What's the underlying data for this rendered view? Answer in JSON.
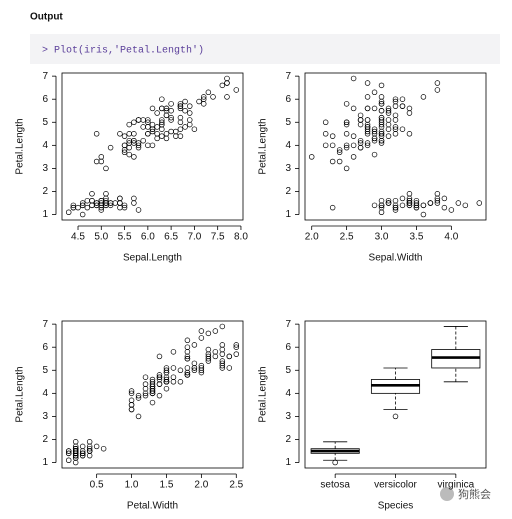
{
  "header": "Output",
  "code": "> Plot(iris,'Petal.Length')",
  "watermark": "狗熊会",
  "chart_data": [
    {
      "type": "scatter",
      "xlabel": "Sepal.Length",
      "ylabel": "Petal.Length",
      "xlim": [
        4.156,
        8.044
      ],
      "ylim": [
        0.764,
        7.136
      ],
      "xticks": [
        4.5,
        {
          "value": 5,
          "label": "5.0"
        },
        5.5,
        {
          "value": 6,
          "label": "6.0"
        },
        6.5,
        {
          "value": 7,
          "label": "7.0"
        },
        7.5,
        {
          "value": 8,
          "label": "8.0"
        }
      ],
      "yticks": [
        1,
        2,
        3,
        4,
        5,
        6,
        7
      ],
      "x": [
        5.1,
        4.9,
        4.7,
        4.6,
        5.0,
        5.4,
        4.6,
        5.0,
        4.4,
        4.9,
        5.4,
        4.8,
        4.8,
        4.3,
        5.8,
        5.7,
        5.4,
        5.1,
        5.7,
        5.1,
        5.4,
        5.1,
        4.6,
        5.1,
        4.8,
        5.0,
        5.0,
        5.2,
        5.2,
        4.7,
        4.8,
        5.4,
        5.2,
        5.5,
        4.9,
        5.0,
        5.5,
        4.9,
        4.4,
        5.1,
        5.0,
        4.5,
        4.4,
        5.0,
        5.1,
        4.8,
        5.1,
        4.6,
        5.3,
        5.0,
        7.0,
        6.4,
        6.9,
        5.5,
        6.5,
        5.7,
        6.3,
        4.9,
        6.6,
        5.2,
        5.0,
        5.9,
        6.0,
        6.1,
        5.6,
        6.7,
        5.6,
        5.8,
        6.2,
        5.6,
        5.9,
        6.1,
        6.3,
        6.1,
        6.4,
        6.6,
        6.8,
        6.7,
        6.0,
        5.7,
        5.5,
        5.5,
        5.8,
        6.0,
        5.4,
        6.0,
        6.7,
        6.3,
        5.6,
        5.5,
        5.5,
        6.1,
        5.8,
        5.0,
        5.6,
        5.7,
        5.7,
        6.2,
        5.1,
        5.7,
        6.3,
        5.8,
        7.1,
        6.3,
        6.5,
        7.6,
        4.9,
        7.3,
        6.7,
        7.2,
        6.5,
        6.4,
        6.8,
        5.7,
        5.8,
        6.4,
        6.5,
        7.7,
        7.7,
        6.0,
        6.9,
        5.6,
        7.7,
        6.3,
        6.7,
        7.2,
        6.2,
        6.1,
        6.4,
        7.2,
        7.4,
        7.9,
        6.4,
        6.3,
        6.1,
        7.7,
        6.3,
        6.4,
        6.0,
        6.9,
        6.7,
        6.9,
        5.8,
        6.8,
        6.7,
        6.7,
        6.3,
        6.5,
        6.2,
        5.9
      ],
      "y": [
        1.4,
        1.4,
        1.3,
        1.5,
        1.4,
        1.7,
        1.4,
        1.5,
        1.4,
        1.5,
        1.5,
        1.6,
        1.4,
        1.1,
        1.2,
        1.5,
        1.3,
        1.4,
        1.7,
        1.5,
        1.7,
        1.5,
        1.0,
        1.7,
        1.9,
        1.6,
        1.6,
        1.5,
        1.4,
        1.6,
        1.6,
        1.5,
        1.5,
        1.4,
        1.5,
        1.2,
        1.3,
        1.4,
        1.3,
        1.5,
        1.3,
        1.3,
        1.3,
        1.6,
        1.9,
        1.4,
        1.6,
        1.4,
        1.5,
        1.4,
        4.7,
        4.5,
        4.9,
        4.0,
        4.6,
        4.5,
        4.7,
        3.3,
        4.6,
        3.9,
        3.5,
        4.2,
        4.0,
        4.7,
        3.6,
        4.4,
        4.5,
        4.1,
        4.5,
        3.9,
        4.8,
        4.0,
        4.9,
        4.7,
        4.3,
        4.4,
        4.8,
        5.0,
        4.5,
        3.5,
        3.8,
        3.7,
        3.9,
        5.1,
        4.5,
        4.5,
        4.7,
        4.4,
        4.1,
        4.0,
        4.4,
        4.6,
        4.0,
        3.3,
        4.2,
        4.2,
        4.2,
        4.3,
        3.0,
        4.1,
        6.0,
        5.1,
        5.9,
        5.6,
        5.8,
        6.6,
        4.5,
        6.3,
        5.8,
        6.1,
        5.1,
        5.3,
        5.5,
        5.0,
        5.1,
        5.3,
        5.5,
        6.7,
        6.9,
        5.0,
        5.7,
        4.9,
        6.7,
        4.9,
        5.7,
        6.0,
        4.8,
        4.9,
        5.6,
        5.8,
        6.1,
        6.4,
        5.6,
        5.1,
        5.6,
        6.1,
        5.6,
        5.5,
        4.8,
        5.4,
        5.6,
        5.1,
        5.1,
        5.9,
        5.7,
        5.2,
        5.0,
        5.2,
        5.4,
        5.1
      ]
    },
    {
      "type": "scatter",
      "xlabel": "Sepal.Width",
      "ylabel": "Petal.Length",
      "xlim": [
        1.904,
        4.496
      ],
      "ylim": [
        0.764,
        7.136
      ],
      "xticks": [
        {
          "value": 2,
          "label": "2.0"
        },
        2.5,
        {
          "value": 3,
          "label": "3.0"
        },
        3.5,
        {
          "value": 4,
          "label": "4.0"
        }
      ],
      "yticks": [
        1,
        2,
        3,
        4,
        5,
        6,
        7
      ],
      "x": [
        3.5,
        3.0,
        3.2,
        3.1,
        3.6,
        3.9,
        3.4,
        3.4,
        2.9,
        3.1,
        3.7,
        3.4,
        3.0,
        3.0,
        4.0,
        4.4,
        3.9,
        3.5,
        3.8,
        3.8,
        3.4,
        3.7,
        3.6,
        3.3,
        3.4,
        3.0,
        3.4,
        3.5,
        3.4,
        3.2,
        3.1,
        3.4,
        4.1,
        4.2,
        3.1,
        3.2,
        3.5,
        3.6,
        3.0,
        3.4,
        3.5,
        2.3,
        3.2,
        3.5,
        3.8,
        3.0,
        3.8,
        3.2,
        3.7,
        3.3,
        3.2,
        3.2,
        3.1,
        2.3,
        2.8,
        2.8,
        3.3,
        2.4,
        2.9,
        2.7,
        2.0,
        3.0,
        2.2,
        2.9,
        2.9,
        3.1,
        3.0,
        2.7,
        2.2,
        2.5,
        3.2,
        2.8,
        2.5,
        2.8,
        2.9,
        3.0,
        2.8,
        3.0,
        2.9,
        2.6,
        2.4,
        2.4,
        2.7,
        2.7,
        3.0,
        3.4,
        3.1,
        2.3,
        3.0,
        2.5,
        2.6,
        3.0,
        2.6,
        2.3,
        2.7,
        3.0,
        2.9,
        2.9,
        2.5,
        2.8,
        3.3,
        2.7,
        3.0,
        2.9,
        3.0,
        3.0,
        2.5,
        2.9,
        2.5,
        3.6,
        3.2,
        2.7,
        3.0,
        2.5,
        2.8,
        3.2,
        3.0,
        3.8,
        2.6,
        2.2,
        3.2,
        2.8,
        2.8,
        2.7,
        3.3,
        3.2,
        2.8,
        3.0,
        2.8,
        3.0,
        2.8,
        3.8,
        2.8,
        2.8,
        2.6,
        3.0,
        3.4,
        3.1,
        3.0,
        3.1,
        3.1,
        3.1,
        2.7,
        3.2,
        3.3,
        3.0,
        2.5,
        3.0,
        3.4,
        3.0
      ],
      "y": [
        1.4,
        1.4,
        1.3,
        1.5,
        1.4,
        1.7,
        1.4,
        1.5,
        1.4,
        1.5,
        1.5,
        1.6,
        1.4,
        1.1,
        1.2,
        1.5,
        1.3,
        1.4,
        1.7,
        1.5,
        1.7,
        1.5,
        1.0,
        1.7,
        1.9,
        1.6,
        1.6,
        1.5,
        1.4,
        1.6,
        1.6,
        1.5,
        1.5,
        1.4,
        1.5,
        1.2,
        1.3,
        1.4,
        1.3,
        1.5,
        1.3,
        1.3,
        1.3,
        1.6,
        1.9,
        1.4,
        1.6,
        1.4,
        1.5,
        1.4,
        4.7,
        4.5,
        4.9,
        4.0,
        4.6,
        4.5,
        4.7,
        3.3,
        4.6,
        3.9,
        3.5,
        4.2,
        4.0,
        4.7,
        3.6,
        4.4,
        4.5,
        4.1,
        4.5,
        3.9,
        4.8,
        4.0,
        4.9,
        4.7,
        4.3,
        4.4,
        4.8,
        5.0,
        4.5,
        3.5,
        3.8,
        3.7,
        3.9,
        5.1,
        4.5,
        4.5,
        4.7,
        4.4,
        4.1,
        4.0,
        4.4,
        4.6,
        4.0,
        3.3,
        4.2,
        4.2,
        4.2,
        4.3,
        3.0,
        4.1,
        6.0,
        5.1,
        5.9,
        5.6,
        5.8,
        6.6,
        4.5,
        6.3,
        5.8,
        6.1,
        5.1,
        5.3,
        5.5,
        5.0,
        5.1,
        5.3,
        5.5,
        6.7,
        6.9,
        5.0,
        5.7,
        4.9,
        6.7,
        4.9,
        5.7,
        6.0,
        4.8,
        4.9,
        5.6,
        5.8,
        6.1,
        6.4,
        5.6,
        5.1,
        5.6,
        6.1,
        5.6,
        5.5,
        4.8,
        5.4,
        5.6,
        5.1,
        5.1,
        5.9,
        5.7,
        5.2,
        5.0,
        5.2,
        5.4,
        5.1
      ]
    },
    {
      "type": "scatter",
      "xlabel": "Petal.Width",
      "ylabel": "Petal.Length",
      "xlim": [
        0.004,
        2.596
      ],
      "ylim": [
        0.764,
        7.136
      ],
      "xticks": [
        0.5,
        {
          "value": 1,
          "label": "1.0"
        },
        1.5,
        {
          "value": 2,
          "label": "2.0"
        },
        2.5
      ],
      "yticks": [
        1,
        2,
        3,
        4,
        5,
        6,
        7
      ],
      "x": [
        0.2,
        0.2,
        0.2,
        0.2,
        0.2,
        0.4,
        0.3,
        0.2,
        0.2,
        0.1,
        0.2,
        0.2,
        0.1,
        0.1,
        0.2,
        0.4,
        0.4,
        0.3,
        0.3,
        0.3,
        0.2,
        0.4,
        0.2,
        0.5,
        0.2,
        0.2,
        0.4,
        0.2,
        0.2,
        0.2,
        0.2,
        0.4,
        0.1,
        0.2,
        0.2,
        0.2,
        0.2,
        0.1,
        0.2,
        0.2,
        0.3,
        0.3,
        0.2,
        0.6,
        0.4,
        0.3,
        0.2,
        0.2,
        0.2,
        0.2,
        1.4,
        1.5,
        1.5,
        1.3,
        1.5,
        1.3,
        1.6,
        1.0,
        1.3,
        1.4,
        1.0,
        1.5,
        1.0,
        1.4,
        1.3,
        1.4,
        1.5,
        1.0,
        1.5,
        1.1,
        1.8,
        1.3,
        1.5,
        1.2,
        1.3,
        1.4,
        1.4,
        1.7,
        1.5,
        1.0,
        1.1,
        1.0,
        1.2,
        1.6,
        1.5,
        1.6,
        1.5,
        1.3,
        1.3,
        1.3,
        1.2,
        1.4,
        1.2,
        1.0,
        1.3,
        1.2,
        1.3,
        1.3,
        1.1,
        1.3,
        2.5,
        1.9,
        2.1,
        1.8,
        2.2,
        2.1,
        1.7,
        1.8,
        1.8,
        2.5,
        2.0,
        1.9,
        2.1,
        2.0,
        2.4,
        2.3,
        1.8,
        2.2,
        2.3,
        1.5,
        2.3,
        2.0,
        2.0,
        1.8,
        2.1,
        1.8,
        1.8,
        1.8,
        2.1,
        1.6,
        1.9,
        2.0,
        2.2,
        1.5,
        1.4,
        2.3,
        2.4,
        1.8,
        1.8,
        2.1,
        2.4,
        2.3,
        1.9,
        2.3,
        2.5,
        2.3,
        1.9,
        2.0,
        2.3,
        1.8
      ],
      "y": [
        1.4,
        1.4,
        1.3,
        1.5,
        1.4,
        1.7,
        1.4,
        1.5,
        1.4,
        1.5,
        1.5,
        1.6,
        1.4,
        1.1,
        1.2,
        1.5,
        1.3,
        1.4,
        1.7,
        1.5,
        1.7,
        1.5,
        1.0,
        1.7,
        1.9,
        1.6,
        1.6,
        1.5,
        1.4,
        1.6,
        1.6,
        1.5,
        1.5,
        1.4,
        1.5,
        1.2,
        1.3,
        1.4,
        1.3,
        1.5,
        1.3,
        1.3,
        1.3,
        1.6,
        1.9,
        1.4,
        1.6,
        1.4,
        1.5,
        1.4,
        4.7,
        4.5,
        4.9,
        4.0,
        4.6,
        4.5,
        4.7,
        3.3,
        4.6,
        3.9,
        3.5,
        4.2,
        4.0,
        4.7,
        3.6,
        4.4,
        4.5,
        4.1,
        4.5,
        3.9,
        4.8,
        4.0,
        4.9,
        4.7,
        4.3,
        4.4,
        4.8,
        5.0,
        4.5,
        3.5,
        3.8,
        3.7,
        3.9,
        5.1,
        4.5,
        4.5,
        4.7,
        4.4,
        4.1,
        4.0,
        4.4,
        4.6,
        4.0,
        3.3,
        4.2,
        4.2,
        4.2,
        4.3,
        3.0,
        4.1,
        6.0,
        5.1,
        5.9,
        5.6,
        5.8,
        6.6,
        4.5,
        6.3,
        5.8,
        6.1,
        5.1,
        5.3,
        5.5,
        5.0,
        5.1,
        5.3,
        5.5,
        6.7,
        6.9,
        5.0,
        5.7,
        4.9,
        6.7,
        4.9,
        5.7,
        6.0,
        4.8,
        4.9,
        5.6,
        5.8,
        6.1,
        6.4,
        5.6,
        5.1,
        5.6,
        6.1,
        5.6,
        5.5,
        4.8,
        5.4,
        5.6,
        5.1,
        5.1,
        5.9,
        5.7,
        5.2,
        5.0,
        5.2,
        5.4,
        5.1
      ]
    },
    {
      "type": "box",
      "xlabel": "Species",
      "ylabel": "Petal.Length",
      "ylim": [
        0.764,
        7.136
      ],
      "yticks": [
        1,
        2,
        3,
        4,
        5,
        6,
        7
      ],
      "categories": [
        "setosa",
        "versicolor",
        "virginica"
      ],
      "whisker_low": [
        1.1,
        3.3,
        4.5
      ],
      "q1": [
        1.4,
        4.0,
        5.1
      ],
      "median": [
        1.5,
        4.35,
        5.55
      ],
      "q3": [
        1.6,
        4.6,
        5.9
      ],
      "whisker_high": [
        1.9,
        5.1,
        6.9
      ],
      "outliers": [
        [
          1.0
        ],
        [
          3.0
        ],
        []
      ]
    }
  ]
}
